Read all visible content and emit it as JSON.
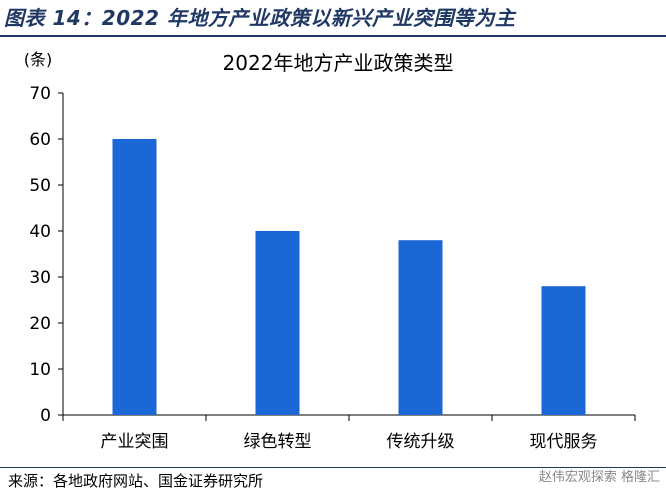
{
  "figure_title": "图表 14：2022 年地方产业政策以新兴产业突围等为主",
  "source": "来源：各地政府网站、国金证券研究所",
  "watermark": "赵伟宏观探索 格隆汇",
  "colors": {
    "bar": "#1c67d6",
    "title": "#1f3864"
  },
  "chart_data": {
    "type": "bar",
    "title": "2022年地方产业政策类型",
    "ylabel": "(条)",
    "xlabel": "",
    "categories": [
      "产业突围",
      "绿色转型",
      "传统升级",
      "现代服务"
    ],
    "values": [
      60,
      40,
      38,
      28
    ],
    "ylim": [
      0,
      70
    ],
    "yticks": [
      0,
      10,
      20,
      30,
      40,
      50,
      60,
      70
    ],
    "grid": false
  }
}
